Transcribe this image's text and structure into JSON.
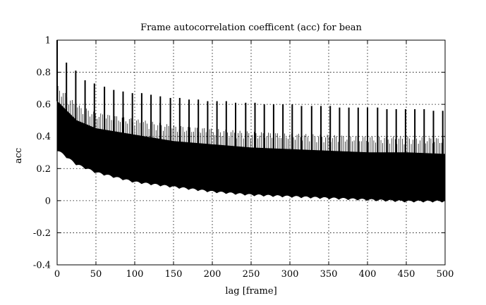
{
  "chart_data": {
    "type": "line",
    "title": "Frame autocorrelation coefficent (acc) for bean",
    "xlabel": "lag [frame]",
    "ylabel": "acc",
    "xlim": [
      0,
      500
    ],
    "ylim": [
      -0.4,
      1
    ],
    "x_ticks": [
      "0",
      "50",
      "100",
      "150",
      "200",
      "250",
      "300",
      "350",
      "400",
      "450",
      "500"
    ],
    "y_ticks": [
      "1",
      "0.8",
      "0.6",
      "0.4",
      "0.2",
      "0",
      "-0.2",
      "-0.4"
    ],
    "grid": true,
    "legend": "none",
    "color": "#000000",
    "series": [
      {
        "envelope_x": [
          0,
          25,
          50,
          75,
          100,
          150,
          200,
          250,
          300,
          350,
          400,
          450,
          500
        ],
        "upper": [
          0.62,
          0.5,
          0.45,
          0.43,
          0.41,
          0.37,
          0.35,
          0.33,
          0.32,
          0.31,
          0.3,
          0.3,
          0.29
        ],
        "lower": [
          0.31,
          0.22,
          0.17,
          0.14,
          0.11,
          0.08,
          0.05,
          0.03,
          0.02,
          0.01,
          0.0,
          -0.01,
          -0.01
        ],
        "peaks_x": [
          0,
          12,
          24,
          36,
          48,
          61,
          73,
          85,
          97,
          109,
          121,
          133,
          146,
          158,
          170,
          182,
          194,
          206,
          218,
          230,
          243,
          255,
          267,
          279,
          291,
          303,
          315,
          328,
          340,
          352,
          364,
          376,
          388,
          400,
          413,
          425,
          437,
          449,
          461,
          473,
          485,
          497
        ],
        "peaks_y": [
          1.0,
          0.86,
          0.81,
          0.75,
          0.73,
          0.71,
          0.69,
          0.68,
          0.67,
          0.67,
          0.66,
          0.65,
          0.64,
          0.64,
          0.63,
          0.63,
          0.62,
          0.62,
          0.62,
          0.61,
          0.61,
          0.61,
          0.6,
          0.6,
          0.6,
          0.6,
          0.59,
          0.59,
          0.59,
          0.59,
          0.58,
          0.58,
          0.58,
          0.58,
          0.58,
          0.57,
          0.57,
          0.57,
          0.57,
          0.57,
          0.56,
          0.56
        ]
      }
    ]
  }
}
